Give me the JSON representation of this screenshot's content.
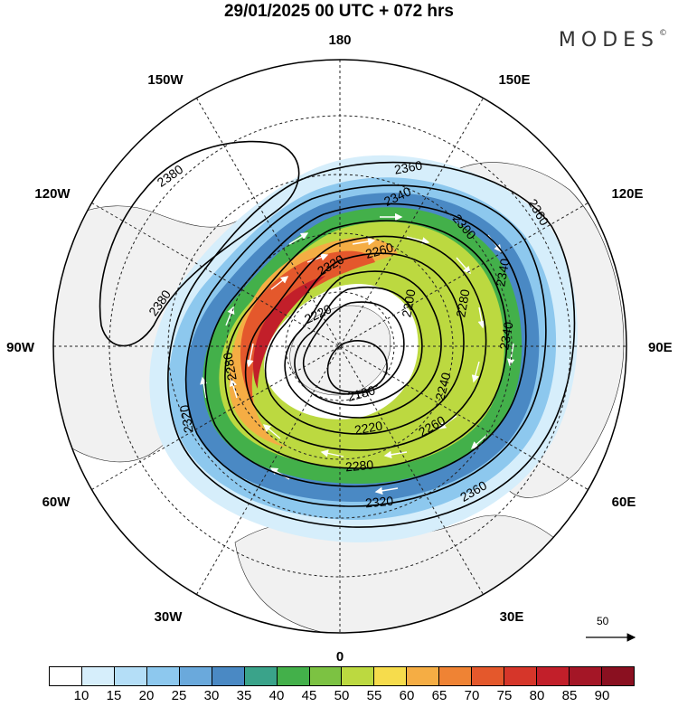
{
  "title": "29/01/2025  00 UTC  + 072 hrs",
  "brand": "MODES",
  "brand_mark": "©",
  "longitude_labels": {
    "top": "180",
    "bottom": "0",
    "left": "90W",
    "right": "90E",
    "upper_left_1": "150W",
    "upper_left_2": "120W",
    "upper_right_1": "150E",
    "upper_right_2": "120E",
    "lower_left_1": "60W",
    "lower_left_2": "30W",
    "lower_right_1": "60E",
    "lower_right_2": "30E"
  },
  "contour_labels": {
    "c1": "2380",
    "c2": "2380",
    "c3": "2360",
    "c4": "2360",
    "c5": "2340",
    "c6": "2340",
    "c7": "2340",
    "c8": "2320",
    "c9": "2320",
    "c10": "2300",
    "c11": "2280",
    "c12": "2280",
    "c13": "2260",
    "c14": "2240",
    "c15": "2220",
    "c16": "2220",
    "c17": "2200",
    "c18": "2180",
    "c19": "2360",
    "c20": "2260",
    "c21": "2280",
    "c22": "2320"
  },
  "vector_reference": "50",
  "colorbar": {
    "colors": [
      "#ffffff",
      "#d6eefb",
      "#b4def7",
      "#8dc8ee",
      "#6aa9dc",
      "#4a89c4",
      "#3aa38a",
      "#43b04a",
      "#7cc242",
      "#bcd940",
      "#f6dc4c",
      "#f5ad44",
      "#ef8334",
      "#e4582c",
      "#d6362a",
      "#c21f2a",
      "#a41626",
      "#8a1020"
    ],
    "ticks": [
      "10",
      "15",
      "20",
      "25",
      "30",
      "35",
      "40",
      "45",
      "50",
      "55",
      "60",
      "65",
      "70",
      "75",
      "80",
      "85",
      "90"
    ]
  }
}
